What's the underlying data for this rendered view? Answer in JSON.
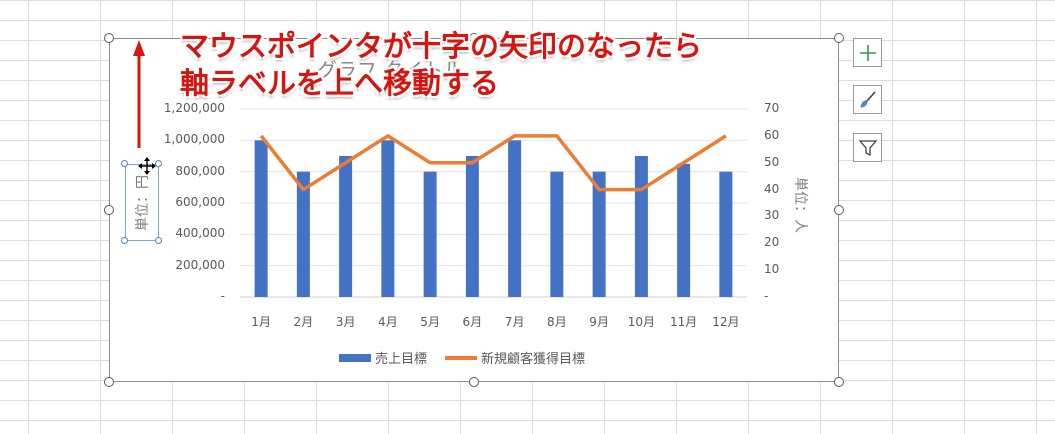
{
  "chart_data": {
    "type": "bar",
    "title": "グラフ タイトル",
    "categories": [
      "1月",
      "2月",
      "3月",
      "4月",
      "5月",
      "6月",
      "7月",
      "8月",
      "9月",
      "10月",
      "11月",
      "12月"
    ],
    "series": [
      {
        "name": "売上目標",
        "type": "bar",
        "axis": "primary",
        "values": [
          1000000,
          800000,
          900000,
          1000000,
          800000,
          900000,
          1000000,
          800000,
          800000,
          900000,
          850000,
          800000
        ]
      },
      {
        "name": "新規顧客獲得目標",
        "type": "line",
        "axis": "secondary",
        "values": [
          60,
          40,
          50,
          60,
          50,
          50,
          60,
          60,
          40,
          40,
          50,
          60
        ]
      }
    ],
    "ylim": [
      0,
      1200000
    ],
    "y2lim": [
      0,
      70
    ],
    "ytick_labels": [
      "-",
      "200,000",
      "400,000",
      "600,000",
      "800,000",
      "1,000,000",
      "1,200,000"
    ],
    "y2tick_labels": [
      "-",
      "10",
      "20",
      "30",
      "40",
      "50",
      "60",
      "70"
    ],
    "ylabel": "単位：円",
    "y2label": "単位：人",
    "legend_position": "bottom",
    "colors": {
      "bar": "#4472c4",
      "line": "#ed7d31"
    },
    "grid": true
  },
  "callout": {
    "line1": "マウスポインタが十字の矢印のなったら",
    "line2": "軸ラベルを上へ移動する",
    "color": "#d9140e"
  },
  "side_buttons": [
    {
      "icon": "plus-icon"
    },
    {
      "icon": "brush-icon"
    },
    {
      "icon": "filter-icon"
    }
  ]
}
